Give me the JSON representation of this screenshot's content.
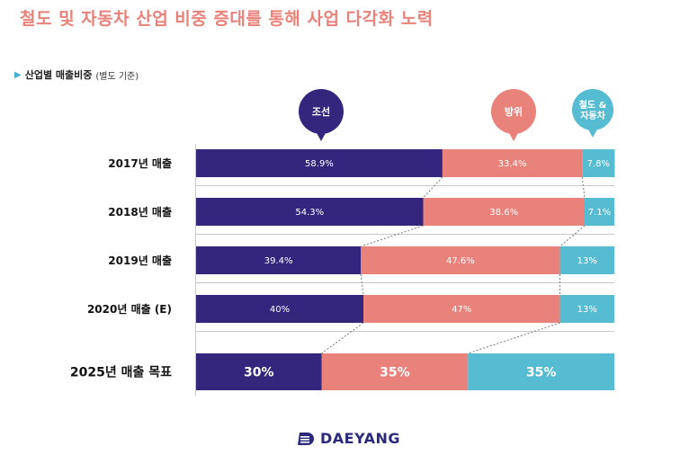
{
  "title": "철도 및 자동차 산업 비중 증대를 통해 사업 다각화 노력",
  "subtitle": {
    "label": "산업별 매출비중",
    "note": "(별도 기준)"
  },
  "legend": [
    {
      "name": "조선",
      "color": "#35267d"
    },
    {
      "name": "방위",
      "color": "#e8827a"
    },
    {
      "name": "철도 & 자동차",
      "lines": [
        "철도 &",
        "자동차"
      ],
      "color": "#56bcd1"
    }
  ],
  "chart_data": {
    "type": "bar",
    "orientation": "horizontal",
    "stacked": true,
    "percent": true,
    "categories": [
      "2017년 매출",
      "2018년 매출",
      "2019년 매출",
      "2020년 매출 (E)",
      "2025년 매출 목표"
    ],
    "series": [
      {
        "name": "조선",
        "values": [
          58.9,
          54.3,
          39.4,
          40,
          30
        ],
        "labels": [
          "58.9%",
          "54.3%",
          "39.4%",
          "40%",
          "30%"
        ],
        "color": "#35267d"
      },
      {
        "name": "방위",
        "values": [
          33.4,
          38.6,
          47.6,
          47,
          35
        ],
        "labels": [
          "33.4%",
          "38.6%",
          "47.6%",
          "47%",
          "35%"
        ],
        "color": "#e8827a"
      },
      {
        "name": "철도 & 자동차",
        "values": [
          7.8,
          7.1,
          13,
          13,
          35
        ],
        "labels": [
          "7.8%",
          "7.1%",
          "13%",
          "13%",
          "35%"
        ],
        "color": "#56bcd1"
      }
    ],
    "xlim": [
      0,
      100
    ]
  },
  "logo": {
    "text": "DAEYANG"
  }
}
